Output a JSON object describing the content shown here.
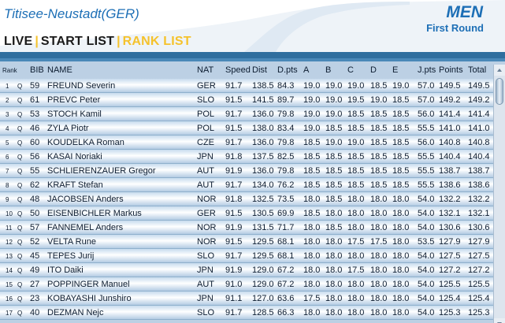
{
  "header": {
    "venue": "Titisee-Neustadt(GER)",
    "category": "MEN",
    "round": "First Round"
  },
  "tabs": [
    {
      "label": "LIVE",
      "active": false
    },
    {
      "label": "START LIST",
      "active": false
    },
    {
      "label": "RANK LIST",
      "active": true
    }
  ],
  "colors": {
    "accent": "#1d6fb6",
    "active_tab": "#f5c22c",
    "header_bar": "#2f6e9e",
    "row_gradient_mid": "#ffffff"
  },
  "columns": {
    "rank": "Rank",
    "bib": "BIB",
    "name": "NAME",
    "nat": "NAT",
    "speed": "Speed",
    "dist": "Dist",
    "dpts": "D.pts",
    "a": "A",
    "b": "B",
    "c": "C",
    "d": "D",
    "e": "E",
    "jpts": "J.pts",
    "points": "Points",
    "total": "Total"
  },
  "rows": [
    {
      "rank": "1",
      "q": "Q",
      "bib": "59",
      "name": "FREUND Severin",
      "nat": "GER",
      "speed": "91.7",
      "dist": "138.5",
      "dpts": "84.3",
      "a": "19.0",
      "b": "19.0",
      "c": "19.0",
      "d": "18.5",
      "e": "19.0",
      "jpts": "57.0",
      "points": "149.5",
      "total": "149.5"
    },
    {
      "rank": "2",
      "q": "Q",
      "bib": "61",
      "name": "PREVC Peter",
      "nat": "SLO",
      "speed": "91.5",
      "dist": "141.5",
      "dpts": "89.7",
      "a": "19.0",
      "b": "19.0",
      "c": "19.5",
      "d": "19.0",
      "e": "18.5",
      "jpts": "57.0",
      "points": "149.2",
      "total": "149.2"
    },
    {
      "rank": "3",
      "q": "Q",
      "bib": "53",
      "name": "STOCH Kamil",
      "nat": "POL",
      "speed": "91.7",
      "dist": "136.0",
      "dpts": "79.8",
      "a": "19.0",
      "b": "19.0",
      "c": "18.5",
      "d": "18.5",
      "e": "18.5",
      "jpts": "56.0",
      "points": "141.4",
      "total": "141.4"
    },
    {
      "rank": "4",
      "q": "Q",
      "bib": "46",
      "name": "ZYLA Piotr",
      "nat": "POL",
      "speed": "91.5",
      "dist": "138.0",
      "dpts": "83.4",
      "a": "19.0",
      "b": "18.5",
      "c": "18.5",
      "d": "18.5",
      "e": "18.5",
      "jpts": "55.5",
      "points": "141.0",
      "total": "141.0"
    },
    {
      "rank": "5",
      "q": "Q",
      "bib": "60",
      "name": "KOUDELKA Roman",
      "nat": "CZE",
      "speed": "91.7",
      "dist": "136.0",
      "dpts": "79.8",
      "a": "18.5",
      "b": "19.0",
      "c": "19.0",
      "d": "18.5",
      "e": "18.5",
      "jpts": "56.0",
      "points": "140.8",
      "total": "140.8"
    },
    {
      "rank": "6",
      "q": "Q",
      "bib": "56",
      "name": "KASAI Noriaki",
      "nat": "JPN",
      "speed": "91.8",
      "dist": "137.5",
      "dpts": "82.5",
      "a": "18.5",
      "b": "18.5",
      "c": "18.5",
      "d": "18.5",
      "e": "18.5",
      "jpts": "55.5",
      "points": "140.4",
      "total": "140.4"
    },
    {
      "rank": "7",
      "q": "Q",
      "bib": "55",
      "name": "SCHLIERENZAUER Gregor",
      "nat": "AUT",
      "speed": "91.9",
      "dist": "136.0",
      "dpts": "79.8",
      "a": "18.5",
      "b": "18.5",
      "c": "18.5",
      "d": "18.5",
      "e": "18.5",
      "jpts": "55.5",
      "points": "138.7",
      "total": "138.7"
    },
    {
      "rank": "8",
      "q": "Q",
      "bib": "62",
      "name": "KRAFT Stefan",
      "nat": "AUT",
      "speed": "91.7",
      "dist": "134.0",
      "dpts": "76.2",
      "a": "18.5",
      "b": "18.5",
      "c": "18.5",
      "d": "18.5",
      "e": "18.5",
      "jpts": "55.5",
      "points": "138.6",
      "total": "138.6"
    },
    {
      "rank": "9",
      "q": "Q",
      "bib": "48",
      "name": "JACOBSEN Anders",
      "nat": "NOR",
      "speed": "91.8",
      "dist": "132.5",
      "dpts": "73.5",
      "a": "18.0",
      "b": "18.5",
      "c": "18.0",
      "d": "18.0",
      "e": "18.0",
      "jpts": "54.0",
      "points": "132.2",
      "total": "132.2"
    },
    {
      "rank": "10",
      "q": "Q",
      "bib": "50",
      "name": "EISENBICHLER Markus",
      "nat": "GER",
      "speed": "91.5",
      "dist": "130.5",
      "dpts": "69.9",
      "a": "18.5",
      "b": "18.0",
      "c": "18.0",
      "d": "18.0",
      "e": "18.0",
      "jpts": "54.0",
      "points": "132.1",
      "total": "132.1"
    },
    {
      "rank": "11",
      "q": "Q",
      "bib": "57",
      "name": "FANNEMEL Anders",
      "nat": "NOR",
      "speed": "91.9",
      "dist": "131.5",
      "dpts": "71.7",
      "a": "18.0",
      "b": "18.5",
      "c": "18.0",
      "d": "18.0",
      "e": "18.0",
      "jpts": "54.0",
      "points": "130.6",
      "total": "130.6"
    },
    {
      "rank": "12",
      "q": "Q",
      "bib": "52",
      "name": "VELTA Rune",
      "nat": "NOR",
      "speed": "91.5",
      "dist": "129.5",
      "dpts": "68.1",
      "a": "18.0",
      "b": "18.0",
      "c": "17.5",
      "d": "17.5",
      "e": "18.0",
      "jpts": "53.5",
      "points": "127.9",
      "total": "127.9"
    },
    {
      "rank": "13",
      "q": "Q",
      "bib": "45",
      "name": "TEPES Jurij",
      "nat": "SLO",
      "speed": "91.7",
      "dist": "129.5",
      "dpts": "68.1",
      "a": "18.0",
      "b": "18.0",
      "c": "18.0",
      "d": "18.0",
      "e": "18.0",
      "jpts": "54.0",
      "points": "127.5",
      "total": "127.5"
    },
    {
      "rank": "14",
      "q": "Q",
      "bib": "49",
      "name": "ITO Daiki",
      "nat": "JPN",
      "speed": "91.9",
      "dist": "129.0",
      "dpts": "67.2",
      "a": "18.0",
      "b": "18.0",
      "c": "17.5",
      "d": "18.0",
      "e": "18.0",
      "jpts": "54.0",
      "points": "127.2",
      "total": "127.2"
    },
    {
      "rank": "15",
      "q": "Q",
      "bib": "27",
      "name": "POPPINGER Manuel",
      "nat": "AUT",
      "speed": "91.0",
      "dist": "129.0",
      "dpts": "67.2",
      "a": "18.0",
      "b": "18.0",
      "c": "18.0",
      "d": "18.0",
      "e": "18.0",
      "jpts": "54.0",
      "points": "125.5",
      "total": "125.5"
    },
    {
      "rank": "16",
      "q": "Q",
      "bib": "23",
      "name": "KOBAYASHI Junshiro",
      "nat": "JPN",
      "speed": "91.1",
      "dist": "127.0",
      "dpts": "63.6",
      "a": "17.5",
      "b": "18.0",
      "c": "18.0",
      "d": "18.0",
      "e": "18.0",
      "jpts": "54.0",
      "points": "125.4",
      "total": "125.4"
    },
    {
      "rank": "17",
      "q": "Q",
      "bib": "40",
      "name": "DEZMAN Nejc",
      "nat": "SLO",
      "speed": "91.7",
      "dist": "128.5",
      "dpts": "66.3",
      "a": "18.0",
      "b": "18.0",
      "c": "18.0",
      "d": "18.0",
      "e": "18.0",
      "jpts": "54.0",
      "points": "125.3",
      "total": "125.3"
    }
  ]
}
